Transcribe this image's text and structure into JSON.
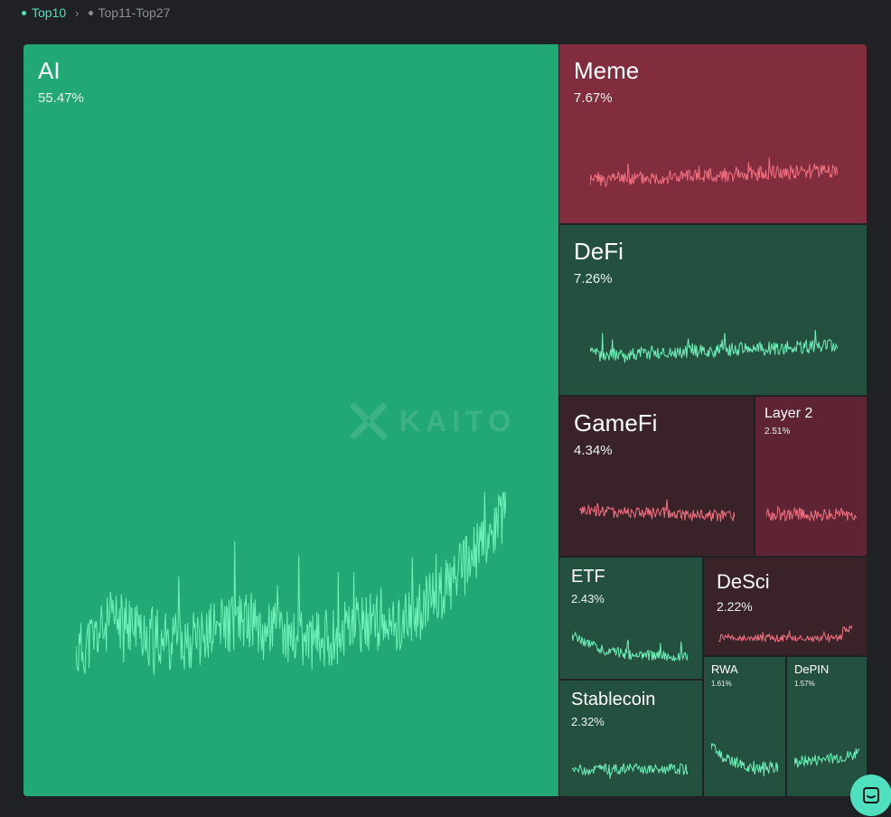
{
  "tabs": [
    {
      "label": "Top10",
      "active": true
    },
    {
      "label": "Top11-Top27",
      "active": false
    }
  ],
  "watermark": "KAITO",
  "colors": {
    "strong_green": "#21a874",
    "dark_green": "#24503f",
    "strong_red": "#812d3d",
    "mid_red": "#5e2434",
    "dark_red": "#3a2229",
    "green_line": "#6ff0b8",
    "red_line": "#f07080",
    "accent": "#4fe0c0"
  },
  "sectors": {
    "ai": {
      "name": "AI",
      "share": "55.47%"
    },
    "meme": {
      "name": "Meme",
      "share": "7.67%"
    },
    "defi": {
      "name": "DeFi",
      "share": "7.26%"
    },
    "gamefi": {
      "name": "GameFi",
      "share": "4.34%"
    },
    "layer2": {
      "name": "Layer 2",
      "share": "2.51%"
    },
    "etf": {
      "name": "ETF",
      "share": "2.43%"
    },
    "desci": {
      "name": "DeSci",
      "share": "2.22%"
    },
    "stablecoin": {
      "name": "Stablecoin",
      "share": "2.32%"
    },
    "rwa": {
      "name": "RWA",
      "share": "1.61%"
    },
    "depin": {
      "name": "DePIN",
      "share": "1.57%"
    }
  },
  "support_button": {
    "icon": "chat-icon"
  }
}
